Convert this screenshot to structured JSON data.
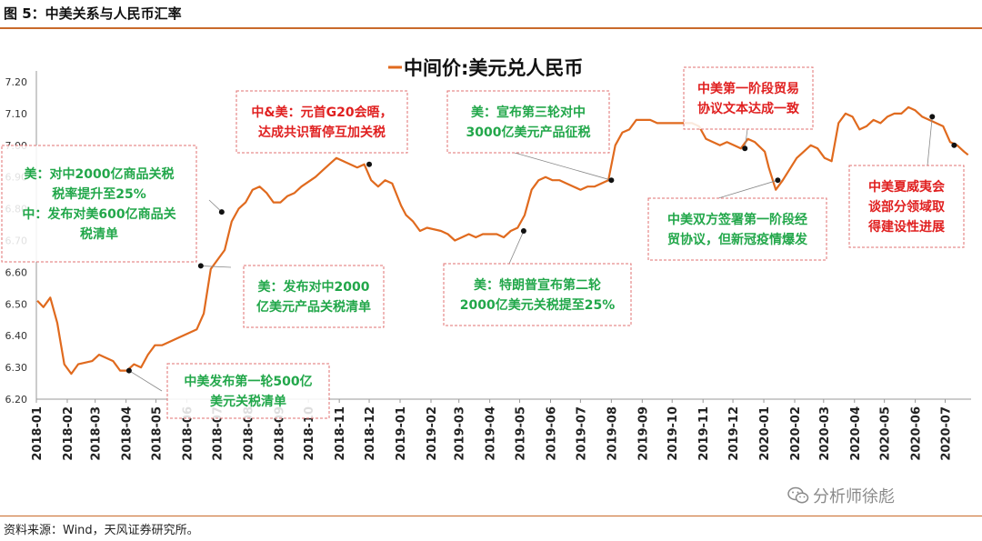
{
  "header": {
    "figure_title": "图 5：中美关系与人民币汇率"
  },
  "footer": {
    "source": "资料来源：Wind，天风证券研究所。",
    "watermark": "分析师徐彪",
    "watermark_icon": "wechat-icon"
  },
  "colors": {
    "series": "#e06a1e",
    "annotation_green": "#22a74a",
    "annotation_red": "#e02020",
    "dashed_border": "#e07070",
    "rule": "#c96a2a"
  },
  "chart_data": {
    "type": "line",
    "title": "",
    "xlabel": "",
    "ylabel": "",
    "ylim": [
      6.2,
      7.2
    ],
    "y_ticks": [
      "6.20",
      "6.30",
      "6.40",
      "6.50",
      "6.60",
      "6.70",
      "6.80",
      "6.90",
      "7.00",
      "7.10",
      "7.20"
    ],
    "x_ticks": [
      "2018-01",
      "2018-02",
      "2018-03",
      "2018-04",
      "2018-05",
      "2018-06",
      "2018-07",
      "2018-08",
      "2018-09",
      "2018-10",
      "2018-11",
      "2018-12",
      "2019-01",
      "2019-02",
      "2019-03",
      "2019-04",
      "2019-05",
      "2019-06",
      "2019-07",
      "2019-08",
      "2019-09",
      "2019-10",
      "2019-11",
      "2019-12",
      "2020-01",
      "2020-02",
      "2020-03",
      "2020-04",
      "2020-05",
      "2020-06",
      "2020-07"
    ],
    "grid": false,
    "legend": "top-center",
    "series": [
      {
        "name": "中间价:美元兑人民币",
        "x": [
          "2018-01-02",
          "2018-01-08",
          "2018-01-15",
          "2018-01-22",
          "2018-01-29",
          "2018-02-05",
          "2018-02-12",
          "2018-02-26",
          "2018-03-05",
          "2018-03-12",
          "2018-03-19",
          "2018-03-26",
          "2018-04-02",
          "2018-04-09",
          "2018-04-16",
          "2018-04-23",
          "2018-04-30",
          "2018-05-07",
          "2018-05-14",
          "2018-05-21",
          "2018-05-28",
          "2018-06-04",
          "2018-06-11",
          "2018-06-18",
          "2018-06-25",
          "2018-07-02",
          "2018-07-09",
          "2018-07-16",
          "2018-07-23",
          "2018-07-30",
          "2018-08-06",
          "2018-08-13",
          "2018-08-20",
          "2018-08-27",
          "2018-09-03",
          "2018-09-10",
          "2018-09-17",
          "2018-09-24",
          "2018-10-08",
          "2018-10-15",
          "2018-10-22",
          "2018-10-29",
          "2018-11-05",
          "2018-11-12",
          "2018-11-19",
          "2018-11-26",
          "2018-12-03",
          "2018-12-10",
          "2018-12-17",
          "2018-12-24",
          "2019-01-02",
          "2019-01-07",
          "2019-01-14",
          "2019-01-21",
          "2019-01-28",
          "2019-02-11",
          "2019-02-18",
          "2019-02-25",
          "2019-03-04",
          "2019-03-11",
          "2019-03-18",
          "2019-03-25",
          "2019-04-01",
          "2019-04-08",
          "2019-04-15",
          "2019-04-22",
          "2019-04-29",
          "2019-05-06",
          "2019-05-13",
          "2019-05-20",
          "2019-05-27",
          "2019-06-03",
          "2019-06-10",
          "2019-06-17",
          "2019-06-24",
          "2019-07-01",
          "2019-07-08",
          "2019-07-15",
          "2019-07-22",
          "2019-07-29",
          "2019-08-05",
          "2019-08-12",
          "2019-08-19",
          "2019-08-26",
          "2019-09-02",
          "2019-09-09",
          "2019-09-16",
          "2019-09-23",
          "2019-10-08",
          "2019-10-14",
          "2019-10-21",
          "2019-10-28",
          "2019-11-04",
          "2019-11-11",
          "2019-11-18",
          "2019-11-25",
          "2019-12-02",
          "2019-12-09",
          "2019-12-16",
          "2019-12-23",
          "2020-01-02",
          "2020-01-06",
          "2020-01-13",
          "2020-01-20",
          "2020-02-03",
          "2020-02-10",
          "2020-02-17",
          "2020-02-24",
          "2020-03-02",
          "2020-03-09",
          "2020-03-16",
          "2020-03-23",
          "2020-03-30",
          "2020-04-06",
          "2020-04-13",
          "2020-04-20",
          "2020-04-27",
          "2020-05-04",
          "2020-05-11",
          "2020-05-18",
          "2020-05-25",
          "2020-06-01",
          "2020-06-08",
          "2020-06-15",
          "2020-06-22",
          "2020-06-29",
          "2020-07-06",
          "2020-07-13",
          "2020-07-20",
          "2020-07-24"
        ],
        "values": [
          6.51,
          6.49,
          6.52,
          6.44,
          6.31,
          6.28,
          6.31,
          6.32,
          6.34,
          6.33,
          6.32,
          6.29,
          6.29,
          6.31,
          6.3,
          6.34,
          6.37,
          6.37,
          6.38,
          6.39,
          6.4,
          6.41,
          6.42,
          6.47,
          6.61,
          6.64,
          6.67,
          6.76,
          6.8,
          6.82,
          6.86,
          6.87,
          6.85,
          6.82,
          6.82,
          6.84,
          6.85,
          6.87,
          6.9,
          6.92,
          6.94,
          6.96,
          6.95,
          6.94,
          6.93,
          6.94,
          6.89,
          6.87,
          6.89,
          6.88,
          6.81,
          6.78,
          6.76,
          6.73,
          6.74,
          6.73,
          6.72,
          6.7,
          6.71,
          6.72,
          6.71,
          6.72,
          6.72,
          6.72,
          6.71,
          6.73,
          6.74,
          6.78,
          6.86,
          6.89,
          6.9,
          6.89,
          6.89,
          6.88,
          6.87,
          6.86,
          6.87,
          6.87,
          6.88,
          6.89,
          7.0,
          7.04,
          7.05,
          7.08,
          7.08,
          7.08,
          7.07,
          7.07,
          7.07,
          7.07,
          7.07,
          7.06,
          7.02,
          7.01,
          7.0,
          7.01,
          7.0,
          6.99,
          7.02,
          7.01,
          6.98,
          6.93,
          6.86,
          6.89,
          6.96,
          6.98,
          7.0,
          6.99,
          6.96,
          6.95,
          7.07,
          7.1,
          7.09,
          7.05,
          7.06,
          7.08,
          7.07,
          7.09,
          7.1,
          7.1,
          7.12,
          7.11,
          7.09,
          7.08,
          7.07,
          7.06,
          7.01,
          7.0,
          6.98,
          6.97
        ]
      }
    ],
    "event_markers": [
      {
        "x": "2018-04-04",
        "y": 6.29
      },
      {
        "x": "2018-06-15",
        "y": 6.62
      },
      {
        "x": "2018-07-06",
        "y": 6.79
      },
      {
        "x": "2018-12-01",
        "y": 6.94
      },
      {
        "x": "2019-05-05",
        "y": 6.73
      },
      {
        "x": "2019-08-01",
        "y": 6.89
      },
      {
        "x": "2019-12-13",
        "y": 6.99
      },
      {
        "x": "2020-01-15",
        "y": 6.89
      },
      {
        "x": "2020-06-18",
        "y": 7.09
      },
      {
        "x": "2020-07-10",
        "y": 7.0
      }
    ],
    "annotations": [
      {
        "lines": [
          "美：对中2000亿商品关税",
          "税率提升至25%",
          "中：发布对美600亿商品关",
          "税清单"
        ],
        "color": "green"
      },
      {
        "lines": [
          "中&美：元首G20会晤，",
          "达成共识暂停互加关税"
        ],
        "color": "red"
      },
      {
        "lines": [
          "美：发布对中2000",
          "亿美元产品关税清单"
        ],
        "color": "green"
      },
      {
        "lines": [
          "中美发布第一轮500亿",
          "美元关税清单"
        ],
        "color": "green"
      },
      {
        "lines": [
          "美：宣布第三轮对中",
          "3000亿美元产品征税"
        ],
        "color": "green"
      },
      {
        "lines": [
          "美：特朗普宣布第二轮",
          "2000亿美元关税提至25%"
        ],
        "color": "green"
      },
      {
        "lines": [
          "中美第一阶段贸易",
          "协议文本达成一致"
        ],
        "color": "red"
      },
      {
        "lines": [
          "中美双方签署第一阶段经",
          "贸协议，但新冠疫情爆发"
        ],
        "color": "green"
      },
      {
        "lines": [
          "中美夏威夷会",
          "谈部分领域取",
          "得建设性进展"
        ],
        "color": "red"
      }
    ]
  }
}
